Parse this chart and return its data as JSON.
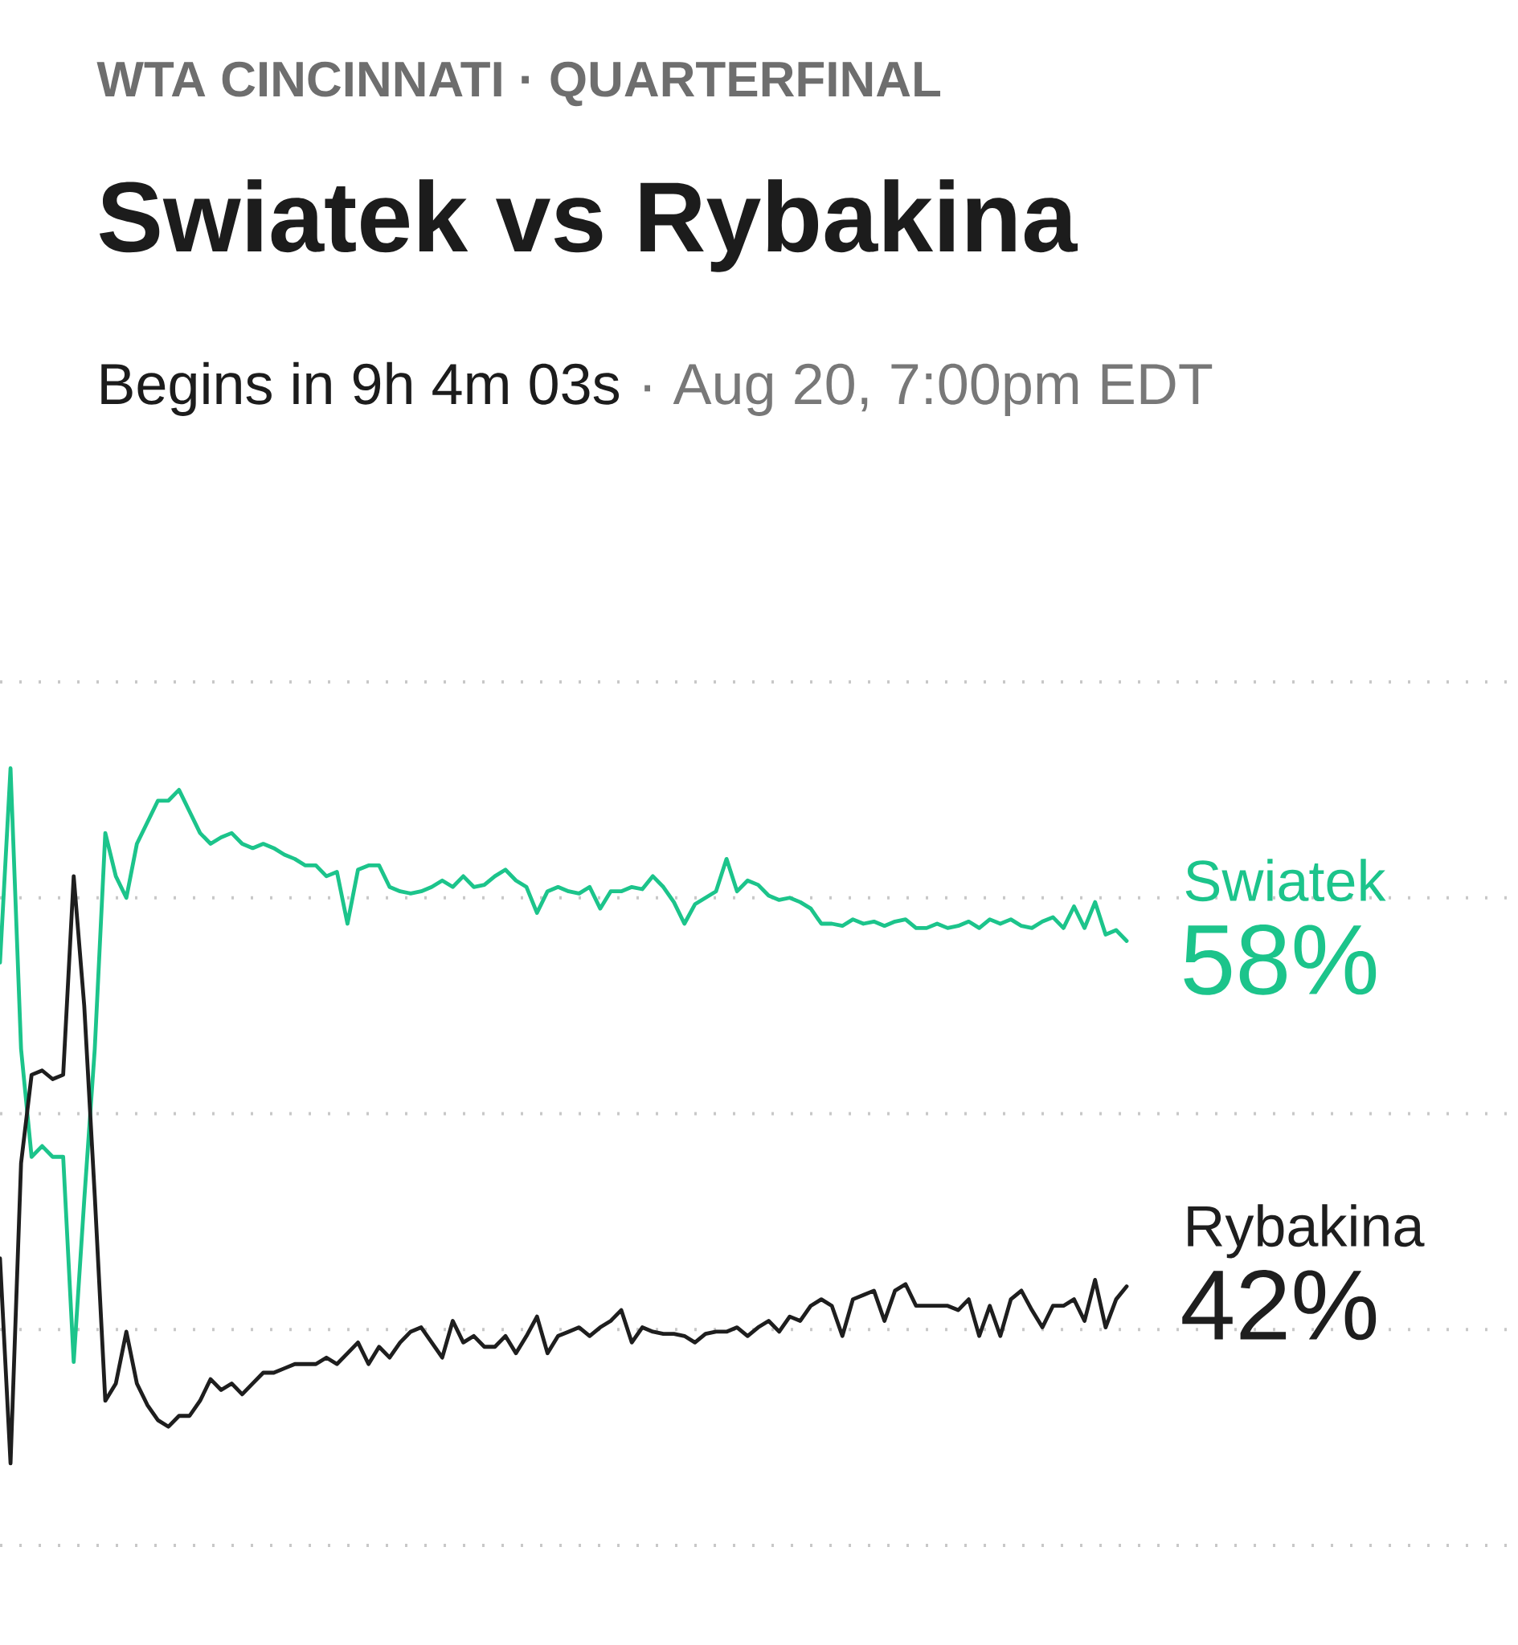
{
  "chart_data": {
    "type": "line",
    "subtitle": "WTA CINCINNATI · QUARTERFINAL",
    "title": "Swiatek vs Rybakina",
    "annotations": [
      "Begins in 9h 4m 03s",
      "· Aug 20, 7:00pm EDT"
    ],
    "categories": [
      null,
      null,
      null,
      null,
      null,
      null,
      null,
      null,
      null,
      null,
      null,
      null,
      null,
      null,
      null,
      null,
      null,
      null,
      null,
      null,
      null,
      null,
      null,
      null,
      null,
      null,
      null,
      null,
      null,
      null,
      null,
      null,
      null,
      null,
      null,
      null,
      null,
      null,
      null,
      null,
      null,
      null,
      null,
      null,
      null,
      null,
      null,
      null,
      null,
      null,
      null,
      null,
      null,
      null,
      null,
      null,
      null,
      null,
      null,
      null,
      null,
      null,
      null,
      null,
      null,
      null,
      null,
      null,
      null,
      null,
      null,
      null,
      null,
      null,
      null,
      null,
      null,
      null,
      null,
      null,
      null,
      null,
      null,
      null,
      null,
      null,
      null,
      null,
      null,
      null,
      null,
      null,
      null,
      null,
      null,
      null,
      null,
      null,
      null,
      null,
      null,
      null,
      null,
      null,
      null,
      null,
      null,
      null
    ],
    "series": [
      {
        "name": "Swiatek",
        "color": "#1cc48b",
        "values": [
          57,
          66,
          53,
          48,
          48.5,
          48,
          48,
          38.5,
          46,
          53,
          63,
          61,
          60,
          62.5,
          63.5,
          64.5,
          64.5,
          65,
          64,
          63,
          62.5,
          62.8,
          63,
          62.5,
          62.3,
          62.5,
          62.3,
          62,
          61.8,
          61.5,
          61.5,
          61,
          61.2,
          58.8,
          61.3,
          61.5,
          61.5,
          60.5,
          60.3,
          60.2,
          60.3,
          60.5,
          60.8,
          60.5,
          61,
          60.5,
          60.6,
          61,
          61.3,
          60.8,
          60.5,
          59.3,
          60.3,
          60.5,
          60.3,
          60.2,
          60.5,
          59.5,
          60.3,
          60.3,
          60.5,
          60.4,
          61,
          60.5,
          59.8,
          58.8,
          59.7,
          60,
          60.3,
          61.8,
          60.3,
          60.8,
          60.6,
          60.1,
          59.9,
          60,
          59.8,
          59.5,
          58.8,
          58.8,
          58.7,
          59,
          58.8,
          58.9,
          58.7,
          58.9,
          59,
          58.6,
          58.6,
          58.8,
          58.6,
          58.7,
          58.9,
          58.6,
          59,
          58.8,
          59,
          58.7,
          58.6,
          58.9,
          59.1,
          58.6,
          59.6,
          58.6,
          59.8,
          58.3,
          58.5,
          58
        ],
        "value_labels": [
          null,
          null,
          null,
          null,
          null,
          null,
          null,
          null,
          null,
          null,
          null,
          null,
          null,
          null,
          null,
          null,
          null,
          null,
          null,
          null,
          null,
          null,
          null,
          null,
          null,
          null,
          null,
          null,
          null,
          null,
          null,
          null,
          null,
          null,
          null,
          null,
          null,
          null,
          null,
          null,
          null,
          null,
          null,
          null,
          null,
          null,
          null,
          null,
          null,
          null,
          null,
          null,
          null,
          null,
          null,
          null,
          null,
          null,
          null,
          null,
          null,
          null,
          null,
          null,
          null,
          null,
          null,
          null,
          null,
          null,
          null,
          null,
          null,
          null,
          null,
          null,
          null,
          null,
          null,
          null,
          null,
          null,
          null,
          null,
          null,
          null,
          null,
          null,
          null,
          null,
          null,
          null,
          null,
          null,
          null,
          null,
          null,
          null,
          null,
          null,
          null,
          null,
          null,
          null,
          null,
          null,
          null,
          "58%"
        ]
      },
      {
        "name": "Rybakina",
        "color": "#1e1e1e",
        "values": [
          43.3,
          33.8,
          47.7,
          51.8,
          52,
          51.6,
          51.8,
          61,
          55,
          46.2,
          36.7,
          37.5,
          39.9,
          37.5,
          36.5,
          35.8,
          35.5,
          36,
          36,
          36.7,
          37.7,
          37.2,
          37.5,
          37,
          37.5,
          38,
          38,
          38.2,
          38.4,
          38.4,
          38.4,
          38.7,
          38.4,
          38.9,
          39.4,
          38.4,
          39.2,
          38.7,
          39.4,
          39.9,
          40.1,
          39.4,
          38.7,
          40.4,
          39.4,
          39.7,
          39.2,
          39.2,
          39.7,
          38.9,
          39.7,
          40.6,
          38.9,
          39.7,
          39.9,
          40.1,
          39.7,
          40.1,
          40.4,
          40.9,
          39.4,
          40.1,
          39.9,
          39.8,
          39.8,
          39.7,
          39.4,
          39.8,
          39.9,
          39.9,
          40.1,
          39.7,
          40.1,
          40.4,
          39.9,
          40.6,
          40.4,
          41.1,
          41.4,
          41.1,
          39.7,
          41.4,
          41.6,
          41.8,
          40.4,
          41.8,
          42.1,
          41.1,
          41.1,
          41.1,
          41.1,
          40.9,
          41.4,
          39.7,
          41.1,
          39.7,
          41.4,
          41.8,
          40.9,
          40.1,
          41.1,
          41.1,
          41.4,
          40.4,
          42.3,
          40.1,
          41.4,
          42
        ],
        "value_labels": [
          null,
          null,
          null,
          null,
          null,
          null,
          null,
          null,
          null,
          null,
          null,
          null,
          null,
          null,
          null,
          null,
          null,
          null,
          null,
          null,
          null,
          null,
          null,
          null,
          null,
          null,
          null,
          null,
          null,
          null,
          null,
          null,
          null,
          null,
          null,
          null,
          null,
          null,
          null,
          null,
          null,
          null,
          null,
          null,
          null,
          null,
          null,
          null,
          null,
          null,
          null,
          null,
          null,
          null,
          null,
          null,
          null,
          null,
          null,
          null,
          null,
          null,
          null,
          null,
          null,
          null,
          null,
          null,
          null,
          null,
          null,
          null,
          null,
          null,
          null,
          null,
          null,
          null,
          null,
          null,
          null,
          null,
          null,
          null,
          null,
          null,
          null,
          null,
          null,
          null,
          null,
          null,
          null,
          null,
          null,
          null,
          null,
          null,
          null,
          null,
          null,
          null,
          null,
          null,
          null,
          null,
          null,
          "42%"
        ]
      }
    ],
    "ylim": [
      30,
      70
    ],
    "yticks": [
      {
        "value": 30,
        "label": null
      },
      {
        "value": 40,
        "label": null
      },
      {
        "value": 50,
        "label": null
      },
      {
        "value": 60,
        "label": null
      },
      {
        "value": 70,
        "label": null
      }
    ],
    "grid": "y",
    "marker": "none",
    "line_style": "solid"
  }
}
